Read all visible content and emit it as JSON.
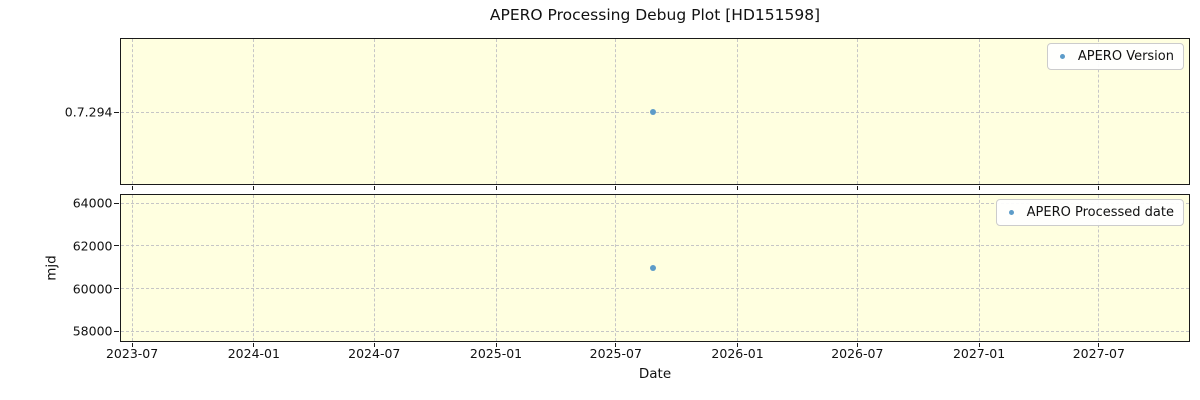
{
  "title": "APERO Processing Debug Plot [HD151598]",
  "colors": {
    "figure_bg": "#ffffff",
    "plot_bg": "#FFFFE0",
    "marker": "#5D9CC9",
    "grid": "#c6c6c6",
    "spine": "#1a1a1a",
    "legend_bg": "#fefefc",
    "legend_border": "#cccccc"
  },
  "x_axis": {
    "label": "Date",
    "min": "2023-06-15",
    "max": "2027-11-15",
    "ticks": [
      {
        "date": "2023-07-01",
        "label": "2023-07"
      },
      {
        "date": "2024-01-01",
        "label": "2024-01"
      },
      {
        "date": "2024-07-01",
        "label": "2024-07"
      },
      {
        "date": "2025-01-01",
        "label": "2025-01"
      },
      {
        "date": "2025-07-01",
        "label": "2025-07"
      },
      {
        "date": "2026-01-01",
        "label": "2026-01"
      },
      {
        "date": "2026-07-01",
        "label": "2026-07"
      },
      {
        "date": "2027-01-01",
        "label": "2027-01"
      },
      {
        "date": "2027-07-01",
        "label": "2027-07"
      }
    ]
  },
  "chart_data": [
    {
      "type": "scatter",
      "name": "apero-version-subplot",
      "legend": "APERO Version",
      "ylabel": "",
      "y_type": "category",
      "y_ticks": [
        "0.7.294"
      ],
      "grid": true,
      "legend_position": "upper right",
      "points": [
        {
          "x": "2025-08-27",
          "y": "0.7.294",
          "y_frac": 0.5
        }
      ]
    },
    {
      "type": "scatter",
      "name": "apero-processed-date-subplot",
      "legend": "APERO Processed date",
      "ylabel": "mjd",
      "ylim": [
        57520,
        64360
      ],
      "y_ticks": [
        58000,
        60000,
        62000,
        64000
      ],
      "grid": true,
      "legend_position": "upper right",
      "points": [
        {
          "x": "2025-08-27",
          "y": 60920
        }
      ]
    }
  ]
}
